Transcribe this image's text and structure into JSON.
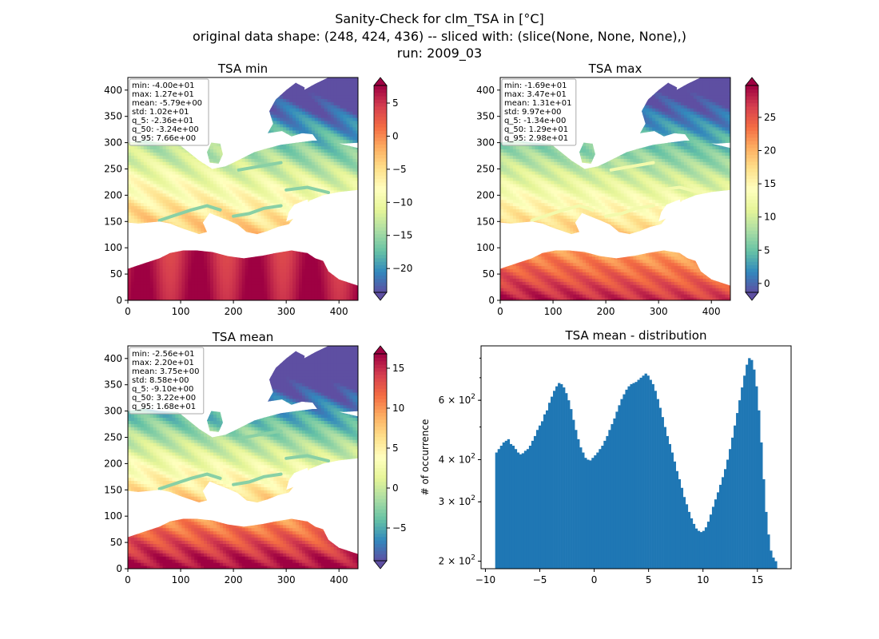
{
  "figure": {
    "title_lines": [
      "Sanity-Check for clm_TSA in [°C]",
      "original data shape: (248, 424, 436) -- sliced with: (slice(None, None, None),)",
      "run: 2009_03"
    ]
  },
  "colors": {
    "spectral_r": [
      "#5e4fa2",
      "#3288bd",
      "#66c2a5",
      "#abdda4",
      "#e6f598",
      "#ffffbf",
      "#fee08b",
      "#fdae61",
      "#f46d43",
      "#d53e4f",
      "#9e0142"
    ],
    "hist_bar": "#1f77b4"
  },
  "chart_data": [
    {
      "type": "heatmap",
      "title": "TSA min",
      "xlim": [
        0,
        436
      ],
      "ylim": [
        0,
        424
      ],
      "xticks": [
        0,
        100,
        200,
        300,
        400
      ],
      "yticks": [
        0,
        50,
        100,
        150,
        200,
        250,
        300,
        350,
        400
      ],
      "colorbar": {
        "range": [
          -23.6,
          7.66
        ],
        "ticks": [
          5,
          0,
          -5,
          -10,
          -15,
          -20
        ],
        "tick_labels": [
          "5",
          "0",
          "−5",
          "−10",
          "−15",
          "−20"
        ],
        "extend": "both"
      },
      "stats": [
        "min: -4.00e+01",
        "max: 1.27e+01",
        "mean: -5.79e+00",
        "std: 1.02e+01",
        "q_5: -2.36e+01",
        "q_50: -3.24e+00",
        "q_95: 7.66e+00"
      ]
    },
    {
      "type": "heatmap",
      "title": "TSA max",
      "xlim": [
        0,
        436
      ],
      "ylim": [
        0,
        424
      ],
      "xticks": [
        0,
        100,
        200,
        300,
        400
      ],
      "yticks": [
        0,
        50,
        100,
        150,
        200,
        250,
        300,
        350,
        400
      ],
      "colorbar": {
        "range": [
          -1.34,
          29.8
        ],
        "ticks": [
          25,
          20,
          15,
          10,
          5,
          0
        ],
        "tick_labels": [
          "25",
          "20",
          "15",
          "10",
          "5",
          "0"
        ],
        "extend": "both"
      },
      "stats": [
        "min: -1.69e+01",
        "max: 3.47e+01",
        "mean: 1.31e+01",
        "std: 9.97e+00",
        "q_5: -1.34e+00",
        "q_50: 1.29e+01",
        "q_95: 2.98e+01"
      ]
    },
    {
      "type": "heatmap",
      "title": "TSA mean",
      "xlim": [
        0,
        436
      ],
      "ylim": [
        0,
        424
      ],
      "xticks": [
        0,
        100,
        200,
        300,
        400
      ],
      "yticks": [
        0,
        50,
        100,
        150,
        200,
        250,
        300,
        350,
        400
      ],
      "colorbar": {
        "range": [
          -9.1,
          16.8
        ],
        "ticks": [
          15,
          10,
          5,
          0,
          -5
        ],
        "tick_labels": [
          "15",
          "10",
          "5",
          "0",
          "−5"
        ],
        "extend": "both"
      },
      "stats": [
        "min: -2.56e+01",
        "max: 2.20e+01",
        "mean: 3.75e+00",
        "std: 8.58e+00",
        "q_5: -9.10e+00",
        "q_50: 3.22e+00",
        "q_95: 1.68e+01"
      ]
    },
    {
      "type": "bar",
      "title": "TSA mean - distribution",
      "ylabel": "# of occurrence",
      "y_scale": "log",
      "xlim": [
        -10.4,
        18.1
      ],
      "ylim": [
        190,
        870
      ],
      "xticks": [
        -10,
        -5,
        0,
        5,
        10,
        15
      ],
      "xtick_labels": [
        "−10",
        "−5",
        "0",
        "5",
        "10",
        "15"
      ],
      "yticks": [
        200,
        300,
        400,
        600
      ],
      "ytick_labels": [
        [
          "2",
          "2"
        ],
        [
          "3",
          "2"
        ],
        [
          "4",
          "2"
        ],
        [
          "6",
          "2"
        ]
      ],
      "bin_range": [
        -9.1,
        16.8
      ],
      "counts": [
        420,
        430,
        440,
        450,
        455,
        460,
        445,
        440,
        430,
        420,
        415,
        418,
        425,
        430,
        440,
        455,
        470,
        490,
        505,
        520,
        545,
        560,
        590,
        615,
        640,
        660,
        675,
        670,
        655,
        630,
        600,
        565,
        525,
        490,
        460,
        435,
        420,
        405,
        400,
        398,
        405,
        412,
        420,
        430,
        440,
        455,
        470,
        490,
        510,
        530,
        555,
        580,
        605,
        625,
        645,
        660,
        670,
        675,
        680,
        690,
        700,
        710,
        720,
        710,
        690,
        670,
        640,
        605,
        570,
        535,
        500,
        470,
        445,
        420,
        395,
        370,
        350,
        330,
        310,
        295,
        280,
        268,
        258,
        250,
        246,
        244,
        246,
        252,
        262,
        275,
        290,
        305,
        320,
        337,
        355,
        375,
        400,
        430,
        465,
        505,
        550,
        600,
        655,
        710,
        765,
        800,
        790,
        740,
        660,
        560,
        450,
        350,
        280,
        240,
        215,
        205,
        200
      ]
    }
  ]
}
